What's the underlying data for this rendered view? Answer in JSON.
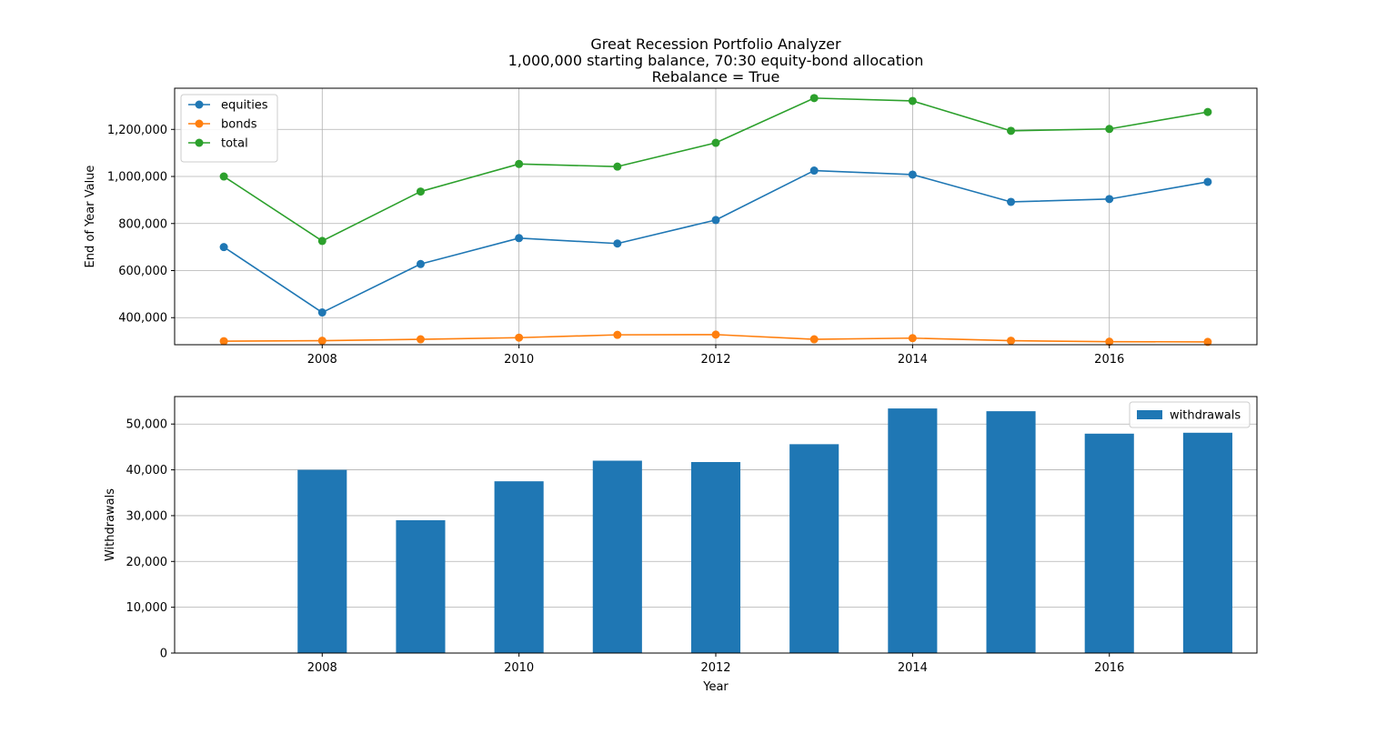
{
  "figure": {
    "title_lines": [
      "Great Recession Portfolio Analyzer",
      "1,000,000 starting balance, 70:30 equity-bond allocation",
      "Rebalance = True"
    ]
  },
  "chart_data": [
    {
      "type": "line",
      "title": "",
      "xlabel": "",
      "ylabel": "End of Year Value",
      "x": [
        2007,
        2008,
        2009,
        2010,
        2011,
        2012,
        2013,
        2014,
        2015,
        2016,
        2017
      ],
      "xlim": [
        2006.5,
        2017.5
      ],
      "ylim": [
        285000,
        1375000
      ],
      "xticks": [
        2008,
        2010,
        2012,
        2014,
        2016
      ],
      "xtick_labels": [
        "2008",
        "2010",
        "2012",
        "2014",
        "2016"
      ],
      "yticks": [
        400000,
        600000,
        800000,
        1000000,
        1200000
      ],
      "ytick_labels": [
        "400,000",
        "600,000",
        "800,000",
        "1,000,000",
        "1,200,000"
      ],
      "grid": true,
      "legend": "upper left",
      "series": [
        {
          "name": "equities",
          "color": "#1f77b4",
          "marker": "circle",
          "values": [
            700000,
            422000,
            628000,
            738000,
            715000,
            815000,
            1025000,
            1008000,
            892000,
            904000,
            977000
          ]
        },
        {
          "name": "bonds",
          "color": "#ff7f0e",
          "marker": "circle",
          "values": [
            300000,
            302000,
            308000,
            315000,
            327000,
            328000,
            308000,
            313000,
            302000,
            298000,
            297000
          ]
        },
        {
          "name": "total",
          "color": "#2ca02c",
          "marker": "circle",
          "values": [
            1000000,
            726000,
            936000,
            1053000,
            1042000,
            1143000,
            1333000,
            1321000,
            1194000,
            1202000,
            1274000
          ]
        }
      ]
    },
    {
      "type": "bar",
      "title": "",
      "xlabel": "Year",
      "ylabel": "Withdrawals",
      "categories": [
        2007,
        2008,
        2009,
        2010,
        2011,
        2012,
        2013,
        2014,
        2015,
        2016,
        2017
      ],
      "xlim": [
        2006.5,
        2017.5
      ],
      "ylim": [
        0,
        56000
      ],
      "xticks": [
        2008,
        2010,
        2012,
        2014,
        2016
      ],
      "xtick_labels": [
        "2008",
        "2010",
        "2012",
        "2014",
        "2016"
      ],
      "yticks": [
        0,
        10000,
        20000,
        30000,
        40000,
        50000
      ],
      "ytick_labels": [
        "0",
        "10,000",
        "20,000",
        "30,000",
        "40,000",
        "50,000"
      ],
      "grid": true,
      "grid_axis": "y",
      "legend": "upper right",
      "bar_width": 0.5,
      "series": [
        {
          "name": "withdrawals",
          "color": "#1f77b4",
          "values": [
            0,
            40000,
            29000,
            37500,
            42000,
            41700,
            45600,
            53400,
            52800,
            47900,
            48100
          ]
        }
      ]
    }
  ]
}
